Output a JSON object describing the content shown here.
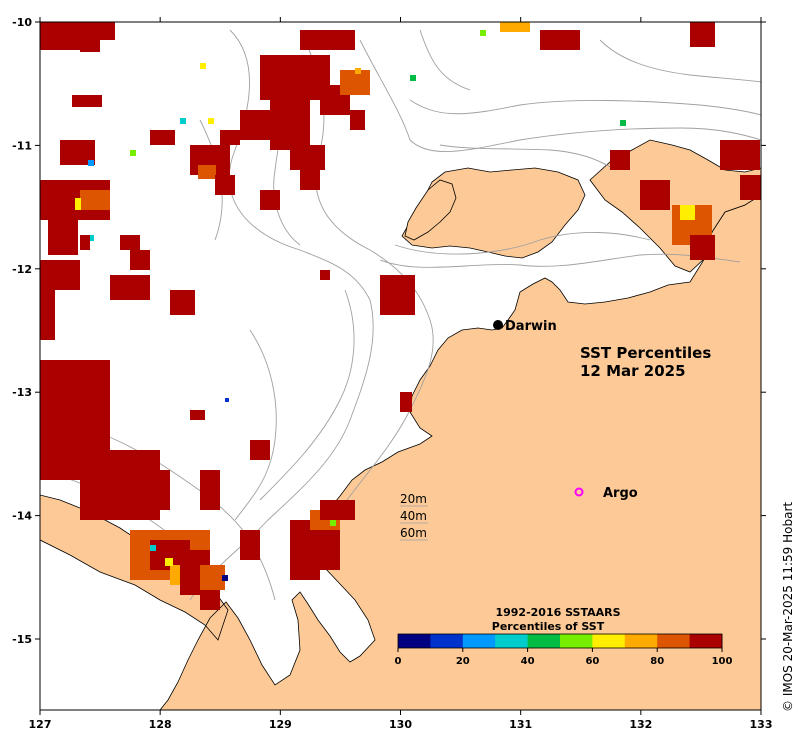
{
  "map": {
    "title_line1": "SST Percentiles",
    "title_line2": "12 Mar 2025",
    "credit": "© IMOS 20-Mar-2025 11:59 Hobart",
    "place_label": "Darwin",
    "argo_label": "Argo",
    "land_color": "#fdca97",
    "ocean_color": "#ffffff",
    "contour_color": "#a0a0a0",
    "argo_color": "#ff00ff",
    "lon_ticks": [
      "127",
      "128",
      "129",
      "130",
      "131",
      "132",
      "133"
    ],
    "lat_ticks": [
      "-10",
      "-11",
      "-12",
      "-13",
      "-14",
      "-15"
    ],
    "depth_legend": [
      "20m",
      "40m",
      "60m"
    ],
    "colorbar": {
      "title_line1": "1992-2016 SSTAARS",
      "title_line2": "Percentiles of SST",
      "ticks": [
        "0",
        "20",
        "40",
        "60",
        "80",
        "100"
      ],
      "colors": [
        "#000080",
        "#0033cc",
        "#0099ff",
        "#00cccc",
        "#00bb44",
        "#77ee00",
        "#ffee00",
        "#ffaa00",
        "#dd5500",
        "#aa0000"
      ]
    }
  }
}
